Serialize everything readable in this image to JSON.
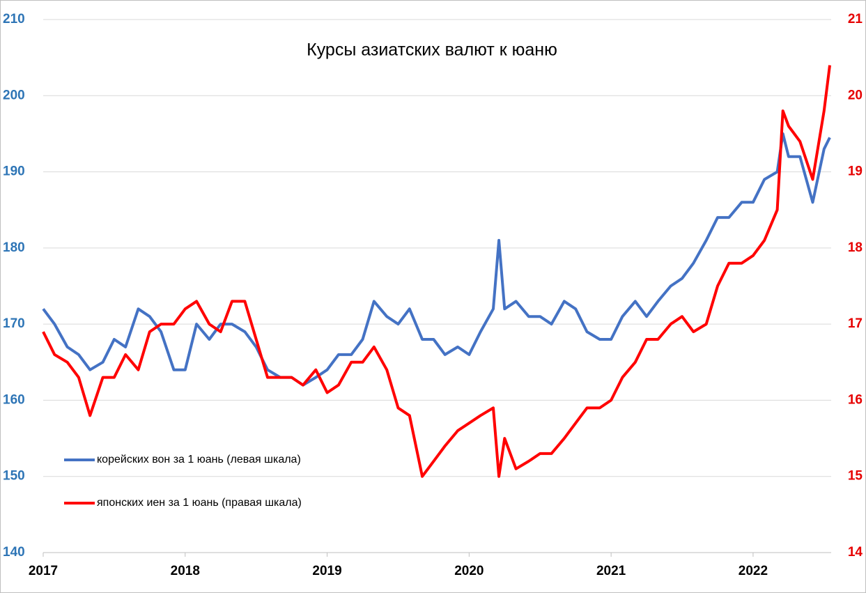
{
  "chart_data": {
    "type": "line",
    "title": "Курсы азиатских валют к юаню",
    "x": [
      2017.0,
      2017.08,
      2017.17,
      2017.25,
      2017.33,
      2017.42,
      2017.5,
      2017.58,
      2017.67,
      2017.75,
      2017.83,
      2017.92,
      2018.0,
      2018.08,
      2018.17,
      2018.25,
      2018.33,
      2018.42,
      2018.5,
      2018.58,
      2018.67,
      2018.75,
      2018.83,
      2018.92,
      2019.0,
      2019.08,
      2019.17,
      2019.25,
      2019.33,
      2019.42,
      2019.5,
      2019.58,
      2019.67,
      2019.75,
      2019.83,
      2019.92,
      2020.0,
      2020.08,
      2020.17,
      2020.21,
      2020.25,
      2020.33,
      2020.42,
      2020.5,
      2020.58,
      2020.67,
      2020.75,
      2020.83,
      2020.92,
      2021.0,
      2021.08,
      2021.17,
      2021.25,
      2021.33,
      2021.42,
      2021.5,
      2021.58,
      2021.67,
      2021.75,
      2021.83,
      2021.92,
      2022.0,
      2022.08,
      2022.17,
      2022.21,
      2022.25,
      2022.33,
      2022.42,
      2022.5,
      2022.54
    ],
    "series": [
      {
        "name": "корейских вон за 1 юань (левая шкала)",
        "color": "#4472c4",
        "axis": "y",
        "values": [
          172,
          170,
          167,
          166,
          164,
          165,
          168,
          167,
          172,
          171,
          169,
          164,
          164,
          170,
          168,
          170,
          170,
          169,
          167,
          164,
          163,
          163,
          162,
          163,
          164,
          166,
          166,
          168,
          173,
          171,
          170,
          172,
          168,
          168,
          166,
          167,
          166,
          169,
          172,
          181,
          172,
          173,
          171,
          171,
          170,
          173,
          172,
          169,
          168,
          168,
          171,
          173,
          171,
          173,
          175,
          176,
          178,
          181,
          184,
          184,
          186,
          186,
          189,
          190,
          195,
          192,
          192,
          186,
          193,
          194.5
        ]
      },
      {
        "name": "японских иен за 1 юань (правая шкала)",
        "color": "#ff0000",
        "axis": "y2",
        "values": [
          16.9,
          16.6,
          16.5,
          16.3,
          15.8,
          16.3,
          16.3,
          16.6,
          16.4,
          16.9,
          17.0,
          17.0,
          17.2,
          17.3,
          17.0,
          16.9,
          17.3,
          17.3,
          16.8,
          16.3,
          16.3,
          16.3,
          16.2,
          16.4,
          16.1,
          16.2,
          16.5,
          16.5,
          16.7,
          16.4,
          15.9,
          15.8,
          15.0,
          15.2,
          15.4,
          15.6,
          15.7,
          15.8,
          15.9,
          15.0,
          15.5,
          15.1,
          15.2,
          15.3,
          15.3,
          15.5,
          15.7,
          15.9,
          15.9,
          16.0,
          16.3,
          16.5,
          16.8,
          16.8,
          17.0,
          17.1,
          16.9,
          17.0,
          17.5,
          17.8,
          17.8,
          17.9,
          18.1,
          18.5,
          19.8,
          19.6,
          19.4,
          18.9,
          19.8,
          20.4
        ]
      }
    ],
    "xlim": [
      2017,
      2022.55
    ],
    "xticks": [
      2017,
      2018,
      2019,
      2020,
      2021,
      2022
    ],
    "ylim": [
      140,
      210
    ],
    "yticks": [
      140,
      150,
      160,
      170,
      180,
      190,
      200,
      210
    ],
    "y2lim": [
      14,
      21
    ],
    "y2ticks": [
      14,
      15,
      16,
      17,
      18,
      19,
      20,
      21
    ],
    "y_color": "#2e75b6",
    "y2_color": "#e60000",
    "grid": true,
    "legend": "lower left"
  }
}
